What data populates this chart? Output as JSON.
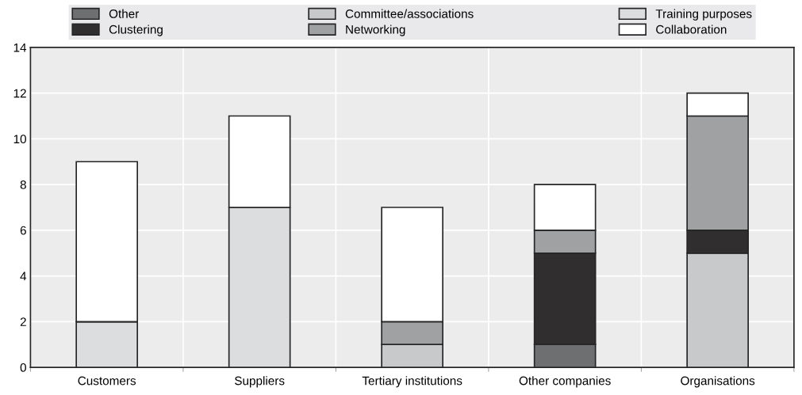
{
  "chart_data": {
    "type": "bar",
    "stacked": true,
    "categories": [
      "Customers",
      "Suppliers",
      "Tertiary institutions",
      "Other companies",
      "Organisations"
    ],
    "series": [
      {
        "name": "Other",
        "color": "#6e6f71",
        "values": [
          0,
          0,
          0,
          1,
          0
        ]
      },
      {
        "name": "Committee/associations",
        "color": "#c8c9cb",
        "values": [
          0,
          0,
          1,
          0,
          5
        ]
      },
      {
        "name": "Training purposes",
        "color": "#dcdddf",
        "values": [
          2,
          7,
          0,
          0,
          0
        ]
      },
      {
        "name": "Clustering",
        "color": "#302e2f",
        "values": [
          0,
          0,
          0,
          4,
          1
        ]
      },
      {
        "name": "Networking",
        "color": "#a0a1a3",
        "values": [
          0,
          0,
          1,
          1,
          5
        ]
      },
      {
        "name": "Collaboration",
        "color": "#ffffff",
        "values": [
          7,
          4,
          5,
          2,
          1
        ]
      }
    ],
    "ylim": [
      0,
      14
    ],
    "yticks": [
      0,
      2,
      4,
      6,
      8,
      10,
      12,
      14
    ],
    "grid": true,
    "legend": "top"
  }
}
